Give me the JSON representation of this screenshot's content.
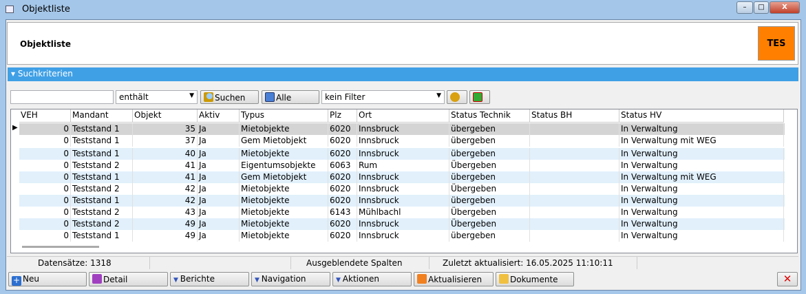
{
  "window": {
    "title": "Objektliste",
    "min": "–",
    "max": "□",
    "close": "X"
  },
  "header": {
    "title": "Objektliste",
    "badge": "TES",
    "badge_color": "#ff8000"
  },
  "section": {
    "label": "▾ Suchkriterien"
  },
  "search": {
    "value": "",
    "operator": "enthält",
    "search_label": "Suchen",
    "all_label": "Alle",
    "filter": "kein Filter"
  },
  "columns": [
    "VEH",
    "Mandant",
    "Objekt",
    "Aktiv",
    "Typus",
    "Plz",
    "Ort",
    "Status Technik",
    "Status BH",
    "Status HV"
  ],
  "rows": [
    [
      "0",
      "Teststand 1",
      "35",
      "Ja",
      "Mietobjekte",
      "6020",
      "Innsbruck",
      "übergeben",
      "",
      "In Verwaltung"
    ],
    [
      "0",
      "Teststand 1",
      "37",
      "Ja",
      "Gem Mietobjekt",
      "6020",
      "Innsbruck",
      "übergeben",
      "",
      "In Verwaltung mit WEG"
    ],
    [
      "0",
      "Teststand 1",
      "40",
      "Ja",
      "Mietobjekte",
      "6020",
      "Innsbruck",
      "übergeben",
      "",
      "In Verwaltung"
    ],
    [
      "0",
      "Teststand 2",
      "41",
      "Ja",
      "Eigentumsobjekte",
      "6063",
      "Rum",
      "Übergeben",
      "",
      "In Verwaltung"
    ],
    [
      "0",
      "Teststand 1",
      "41",
      "Ja",
      "Gem Mietobjekt",
      "6020",
      "Innsbruck",
      "übergeben",
      "",
      "In Verwaltung mit WEG"
    ],
    [
      "0",
      "Teststand 2",
      "42",
      "Ja",
      "Mietobjekte",
      "6020",
      "Innsbruck",
      "Übergeben",
      "",
      "In Verwaltung"
    ],
    [
      "0",
      "Teststand 1",
      "42",
      "Ja",
      "Mietobjekte",
      "6020",
      "Innsbruck",
      "übergeben",
      "",
      "In Verwaltung"
    ],
    [
      "0",
      "Teststand 2",
      "43",
      "Ja",
      "Mietobjekte",
      "6143",
      "Mühlbachl",
      "Übergeben",
      "",
      "In Verwaltung"
    ],
    [
      "0",
      "Teststand 2",
      "49",
      "Ja",
      "Mietobjekte",
      "6020",
      "Innsbruck",
      "Übergeben",
      "",
      "In Verwaltung"
    ],
    [
      "0",
      "Teststand 1",
      "49",
      "Ja",
      "Mietobjekte",
      "6020",
      "Innsbruck",
      "übergeben",
      "",
      "In Verwaltung"
    ]
  ],
  "status": {
    "records": "Datensätze: 1318",
    "hidden": "Ausgeblendete Spalten",
    "updated": "Zuletzt aktualisiert: 16.05.2025 11:10:11"
  },
  "footer": {
    "neu": "Neu",
    "detail": "Detail",
    "berichte": "Berichte",
    "navigation": "Navigation",
    "aktionen": "Aktionen",
    "aktualisieren": "Aktualisieren",
    "dokumente": "Dokumente"
  }
}
